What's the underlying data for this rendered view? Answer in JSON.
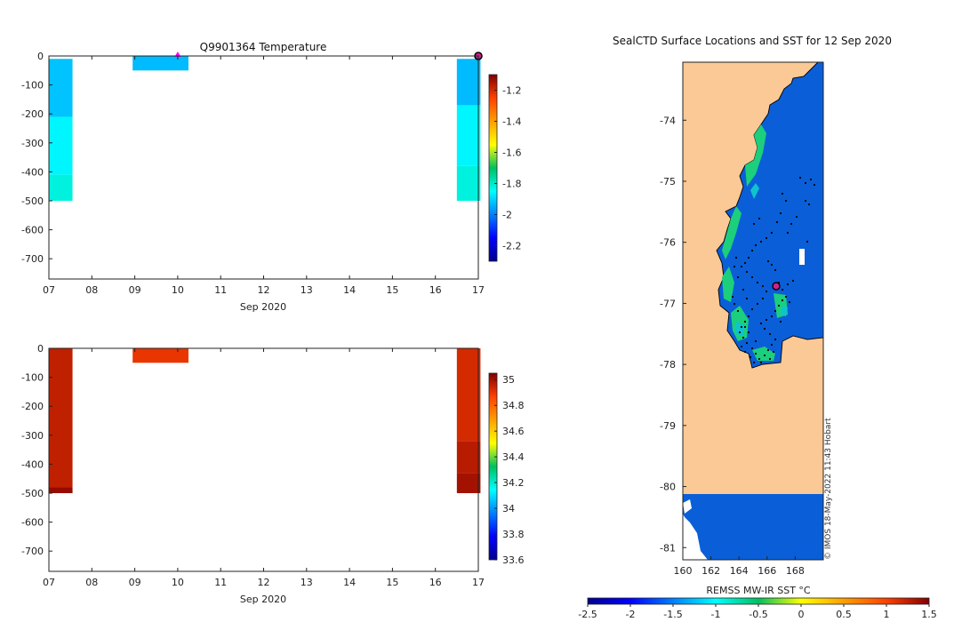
{
  "chart_data": [
    {
      "type": "heatmap",
      "panel": "temperature-section",
      "title": "Q9901364  Temperature",
      "xlabel": "Sep 2020",
      "x_ticks": [
        "07",
        "08",
        "09",
        "10",
        "11",
        "12",
        "13",
        "14",
        "15",
        "16",
        "17"
      ],
      "xlim": [
        7,
        17
      ],
      "ylim": [
        -770,
        0
      ],
      "y_ticks": [
        0,
        -100,
        -200,
        -300,
        -400,
        -500,
        -600,
        -700
      ],
      "colorbar": {
        "min": -2.3,
        "max": -1.1,
        "ticks": [
          -1.2,
          -1.4,
          -1.6,
          -1.8,
          -2,
          -2.2
        ]
      },
      "profiles": [
        {
          "x0": 7.0,
          "x1": 7.55,
          "layers": [
            {
              "top": -10,
              "bottom": -210,
              "value": -1.92
            },
            {
              "top": -210,
              "bottom": -410,
              "value": -1.86
            },
            {
              "top": -410,
              "bottom": -500,
              "value": -1.82
            }
          ]
        },
        {
          "x0": 8.95,
          "x1": 10.25,
          "layers": [
            {
              "top": 0,
              "bottom": -50,
              "value": -1.93
            }
          ]
        },
        {
          "x0": 16.5,
          "x1": 17.05,
          "layers": [
            {
              "top": -10,
              "bottom": -170,
              "value": -1.93
            },
            {
              "top": -170,
              "bottom": -380,
              "value": -1.86
            },
            {
              "top": -380,
              "bottom": -500,
              "value": -1.82
            }
          ]
        }
      ],
      "markers": [
        {
          "kind": "magenta-triangle",
          "x": 10.0,
          "y": 0
        },
        {
          "kind": "current-position",
          "x": 17.0,
          "y": 0
        }
      ]
    },
    {
      "type": "heatmap",
      "panel": "salinity-section",
      "title": "",
      "xlabel": "Sep 2020",
      "x_ticks": [
        "07",
        "08",
        "09",
        "10",
        "11",
        "12",
        "13",
        "14",
        "15",
        "16",
        "17"
      ],
      "xlim": [
        7,
        17
      ],
      "ylim": [
        -770,
        0
      ],
      "y_ticks": [
        0,
        -100,
        -200,
        -300,
        -400,
        -500,
        -600,
        -700
      ],
      "colorbar": {
        "min": 33.6,
        "max": 35.05,
        "ticks": [
          35,
          34.8,
          34.6,
          34.4,
          34.2,
          34,
          33.8,
          33.6
        ]
      },
      "profiles": [
        {
          "x0": 7.0,
          "x1": 7.55,
          "layers": [
            {
              "top": 0,
              "bottom": -480,
              "value": 34.96
            },
            {
              "top": -480,
              "bottom": -500,
              "value": 35.02
            }
          ]
        },
        {
          "x0": 8.95,
          "x1": 10.25,
          "layers": [
            {
              "top": 0,
              "bottom": -50,
              "value": 34.9
            }
          ]
        },
        {
          "x0": 16.5,
          "x1": 17.05,
          "layers": [
            {
              "top": 0,
              "bottom": -320,
              "value": 34.93
            },
            {
              "top": -320,
              "bottom": -430,
              "value": 34.97
            },
            {
              "top": -430,
              "bottom": -500,
              "value": 35.0
            }
          ]
        }
      ]
    },
    {
      "type": "map",
      "panel": "sst-map",
      "title": "SealCTD Surface Locations and SST for 12 Sep 2020",
      "x_ticks": [
        160,
        162,
        164,
        166,
        168
      ],
      "xlim": [
        160,
        170
      ],
      "y_ticks": [
        -74,
        -75,
        -76,
        -77,
        -78,
        -79,
        -80,
        -81
      ],
      "ylim": [
        -81.2,
        -73.05
      ],
      "colorbar": {
        "label": "REMSS MW-IR SST °C",
        "min": -2.5,
        "max": 1.5,
        "ticks": [
          -2.5,
          -2,
          -1.5,
          -1,
          -0.5,
          0,
          0.5,
          1,
          1.5
        ]
      },
      "current_position": {
        "lon": 166.6,
        "lat": -76.65
      },
      "credit": "© IMOS 18-May-2022 11:43 Hobart"
    }
  ]
}
